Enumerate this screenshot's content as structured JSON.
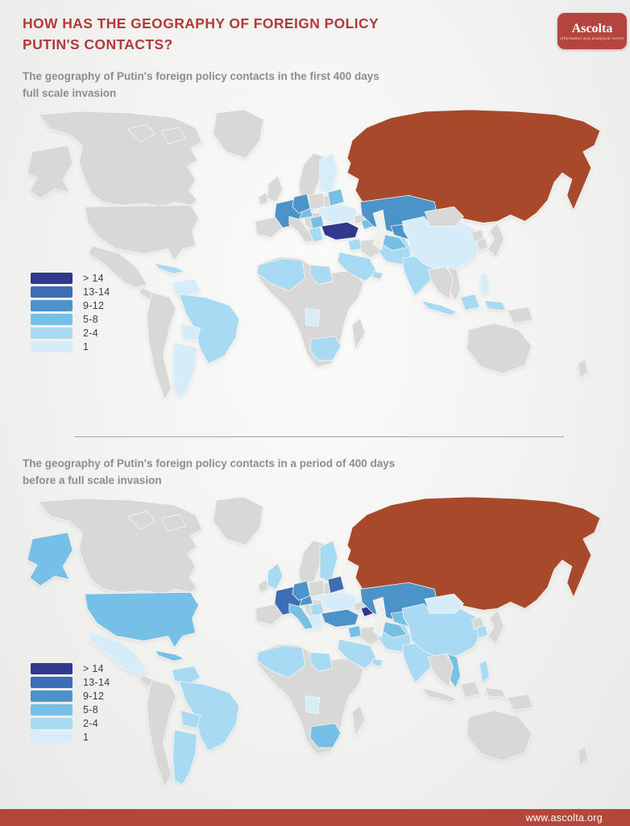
{
  "header": {
    "title": "HOW HAS THE GEOGRAPHY OF FOREIGN POLICY\nPUTIN'S CONTACTS?",
    "logo": {
      "name": "Ascolta",
      "tagline": "information and analytical centre"
    }
  },
  "legend": {
    "items": [
      {
        "tier": "gt14",
        "label": "> 14"
      },
      {
        "tier": "t13_14",
        "label": "13-14"
      },
      {
        "tier": "t9_12",
        "label": "9-12"
      },
      {
        "tier": "t5_8",
        "label": "5-8"
      },
      {
        "tier": "t2_4",
        "label": "2-4"
      },
      {
        "tier": "t1",
        "label": "1"
      }
    ]
  },
  "colors": {
    "accent_red": "#b23a3a",
    "logo_red": "#b5453c",
    "footer_red": "#b5463b",
    "land": "#d8d8d7",
    "sea": "#efefee",
    "tiers": {
      "aggressor": "#a9492b",
      "gt14": "#32388e",
      "t13_14": "#3e6cb5",
      "t9_12": "#4b94c9",
      "t5_8": "#76bfe5",
      "t2_4": "#a8daf3",
      "t1": "#d7ecf9"
    }
  },
  "maps": [
    {
      "id": "first-400-days-of-invasion",
      "subtitle": "The geography of Putin's foreign policy contacts in the first 400 days\nfull scale invasion",
      "countries": {
        "russia": "aggressor",
        "kaliningrad": "aggressor",
        "turkey": "gt14",
        "france": "t9_12",
        "germany": "t9_12",
        "kazakhstan": "t9_12",
        "uzbekistan": "t9_12",
        "kyrgyzstan": "t9_12",
        "austria": "t5_8",
        "serbia": "t5_8",
        "belarus": "t5_8",
        "azerbaijan": "t5_8",
        "turkmenistan": "t5_8",
        "greece": "t2_4",
        "iran": "t2_4",
        "syria": "t2_4",
        "saudi_arabia": "t2_4",
        "uae": "t2_4",
        "egypt": "t2_4",
        "nw_africa": "t2_4",
        "south_africa": "t2_4",
        "india": "t2_4",
        "indonesia": "t2_4",
        "brazil": "t2_4",
        "cuba": "t2_4",
        "china": "t1",
        "philippines": "t1",
        "angola": "t1",
        "argentina": "t1",
        "venezuela": "t1",
        "bolivia": "t1",
        "ukraine": "t1",
        "finland": "t1"
      }
    },
    {
      "id": "400-days-before-invasion",
      "subtitle": "The geography of Putin's foreign policy contacts in a period of 400 days\nbefore a full scale invasion",
      "countries": {
        "russia": "aggressor",
        "kaliningrad": "aggressor",
        "azerbaijan": "gt14",
        "france": "t13_14",
        "belarus": "t13_14",
        "germany": "t9_12",
        "turkey": "t9_12",
        "kazakhstan": "t9_12",
        "austria": "t9_12",
        "italy": "t5_8",
        "usa": "t5_8",
        "alaska": "t5_8",
        "uzbekistan": "t5_8",
        "turkmenistan": "t5_8",
        "kyrgyzstan": "t5_8",
        "syria": "t5_8",
        "cuba": "t5_8",
        "vietnam": "t5_8",
        "south_africa": "t5_8",
        "iran": "t2_4",
        "saudi_arabia": "t2_4",
        "uae": "t2_4",
        "egypt": "t2_4",
        "nw_africa": "t2_4",
        "india": "t2_4",
        "china": "t2_4",
        "uk": "t2_4",
        "finland": "t2_4",
        "venezuela": "t2_4",
        "brazil": "t2_4",
        "bolivia": "t2_4",
        "argentina": "t2_4",
        "serbia": "t2_4",
        "south_korea": "t2_4",
        "philippines": "t2_4",
        "mongolia": "t1",
        "mexico": "t1",
        "ukraine": "t1",
        "pakistan": "t1",
        "angola": "t1",
        "greece": "t1"
      }
    }
  ],
  "footer": {
    "url": "www.ascolta.org"
  }
}
